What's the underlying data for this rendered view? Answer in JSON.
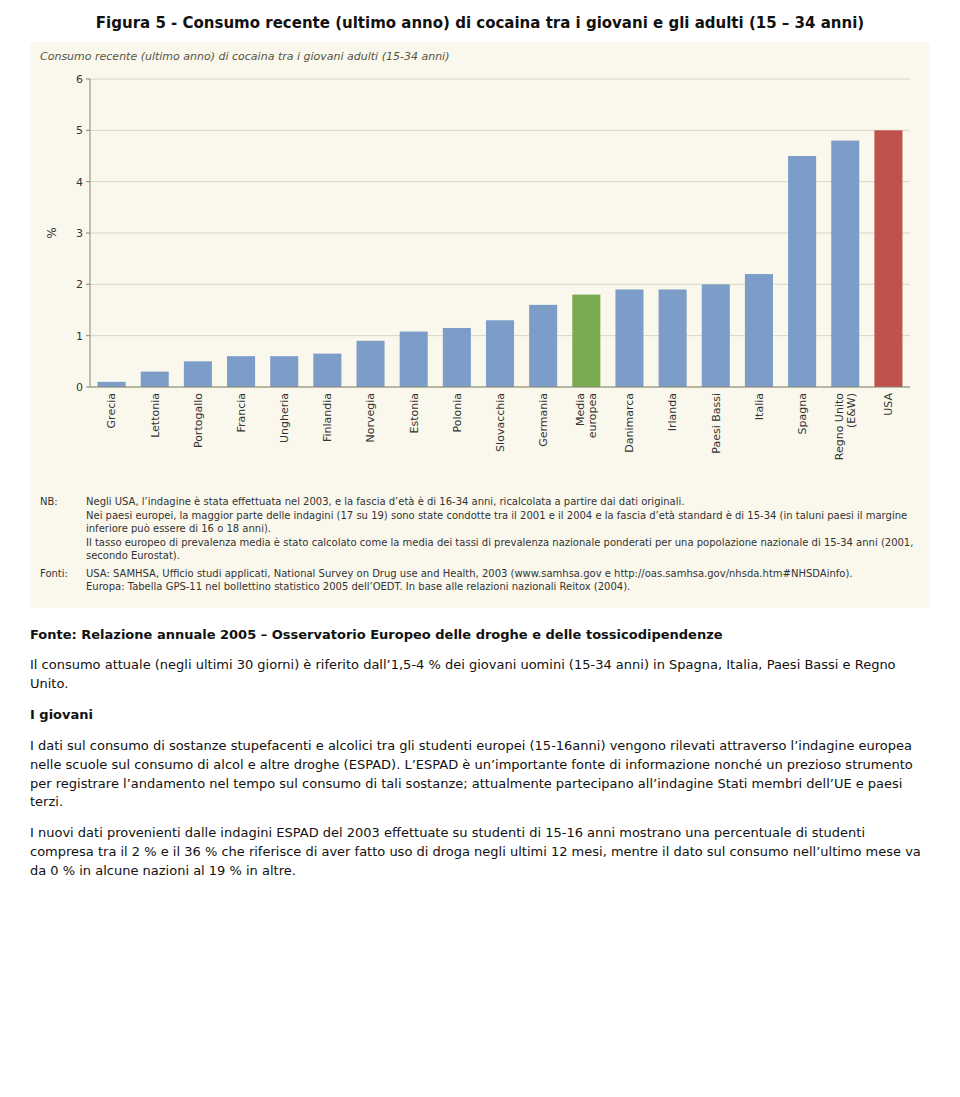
{
  "chart_data": {
    "type": "bar",
    "title": "Figura 5 - Consumo recente (ultimo anno) di cocaina tra i giovani e gli adulti (15 – 34 anni)",
    "subtitle": "Consumo recente (ultimo anno) di cocaina tra i giovani adulti (15-34 anni)",
    "ylabel": "%",
    "categories": [
      "Grecia",
      "Lettonia",
      "Portogallo",
      "Francia",
      "Ungheria",
      "Finlandia",
      "Norvegia",
      "Estonia",
      "Polonia",
      "Slovacchia",
      "Germania",
      "Media\neuropea",
      "Danimarca",
      "Irlanda",
      "Paesi Bassi",
      "Italia",
      "Spagna",
      "Regno Unito\n(E&W)",
      "USA"
    ],
    "values": [
      0.1,
      0.3,
      0.5,
      0.6,
      0.6,
      0.65,
      0.9,
      1.08,
      1.15,
      1.3,
      1.6,
      1.8,
      1.9,
      1.9,
      2.0,
      2.2,
      4.5,
      4.8,
      5.0
    ],
    "colors": [
      "#7b9dc7",
      "#7b9dc7",
      "#7b9dc7",
      "#7b9dc7",
      "#7b9dc7",
      "#7b9dc7",
      "#7b9dc7",
      "#7b9dc7",
      "#7b9dc7",
      "#7b9dc7",
      "#7b9dc7",
      "#7aaa52",
      "#7b9dc7",
      "#7b9dc7",
      "#7b9dc7",
      "#7b9dc7",
      "#7b9dc7",
      "#7b9dc7",
      "#c0514d"
    ],
    "ylim": [
      0,
      6
    ],
    "yticks": [
      0,
      1,
      2,
      3,
      4,
      5,
      6
    ],
    "grid": true,
    "annotations": [
      {
        "label": "NB:",
        "lines": [
          "Negli USA, l’indagine è stata effettuata nel 2003, e la fascia d’età è di 16-34 anni, ricalcolata a partire dai dati originali.",
          "Nei paesi europei, la maggior parte delle indagini (17 su 19) sono state condotte tra il 2001 e il 2004 e la fascia d’età standard è di 15-34 (in taluni paesi il margine inferiore può essere di 16 o 18 anni).",
          "Il tasso europeo di prevalenza media è stato calcolato come la media dei tassi di prevalenza nazionale ponderati per una popolazione nazionale di 15-34 anni (2001, secondo Eurostat)."
        ]
      },
      {
        "label": "Fonti:",
        "lines": [
          "USA: SAMHSA, Ufficio studi applicati, National Survey on Drug use and Health, 2003 (www.samhsa.gov e http://oas.samhsa.gov/nhsda.htm#NHSDAinfo).",
          "Europa: Tabella GPS-11 nel bollettino statistico 2005 dell’OEDT. In base alle relazioni nazionali Reitox (2004)."
        ]
      }
    ]
  },
  "body": {
    "source": "Fonte: Relazione annuale 2005 – Osservatorio Europeo delle droghe e delle tossicodipendenze",
    "paragraph1": "Il consumo attuale (negli ultimi 30 giorni) è riferito dall’1,5-4 % dei giovani uomini (15-34 anni) in Spagna, Italia, Paesi Bassi e Regno Unito.",
    "heading": "I giovani",
    "paragraph2a": "I dati sul consumo di sostanze stupefacenti e alcolici tra gli studenti europei (15-16anni) vengono rilevati attraverso l’indagine europea nelle scuole sul consumo di alcol e altre droghe (ESPAD). L’ESPAD è un’importante fonte di informazione nonché un prezioso strumento per registrare l’andamento nel tempo sul consumo di tali sostanze; attualmente partecipano all’indagine Stati membri dell’UE e paesi terzi.",
    "paragraph2b": "I nuovi dati provenienti dalle indagini ESPAD del 2003 effettuate su studenti di 15-16 anni mostrano una percentuale di studenti compresa tra il 2 % e il 36 % che riferisce di aver fatto uso di droga negli ultimi 12 mesi, mentre il dato sul consumo nell’ultimo mese va da 0 % in alcune nazioni al 19 % in altre."
  }
}
